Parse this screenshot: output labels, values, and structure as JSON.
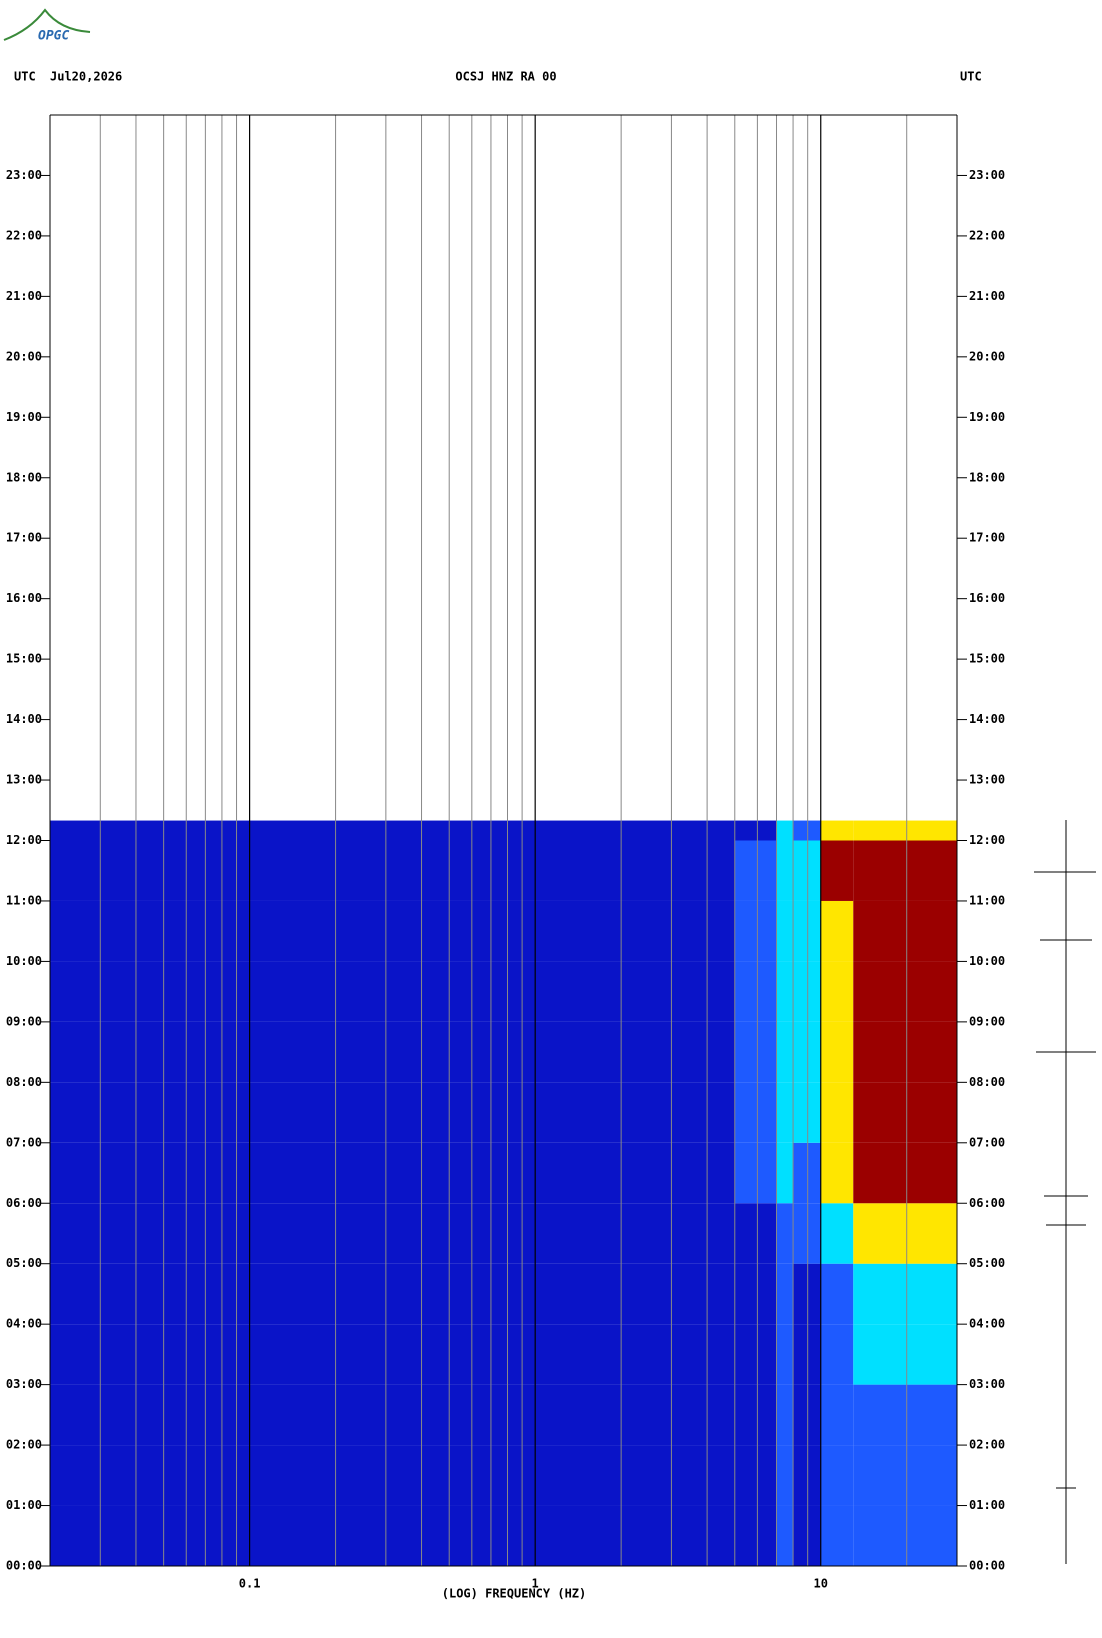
{
  "chart_data": {
    "type": "spectrogram",
    "logo": "OPGC",
    "left_header": "UTC",
    "date": "Jul20,2026",
    "title": "OCSJ HNZ RA 00",
    "right_header": "UTC",
    "xlabel": "(LOG) FREQUENCY (HZ)",
    "xscale": "log",
    "xlim": [
      0.02,
      30
    ],
    "xticks": [
      0.1,
      1,
      10
    ],
    "x_minor_grid": [
      0.03,
      0.04,
      0.05,
      0.06,
      0.07,
      0.08,
      0.09,
      0.2,
      0.3,
      0.4,
      0.5,
      0.6,
      0.7,
      0.8,
      0.9,
      2,
      3,
      4,
      5,
      6,
      7,
      8,
      9,
      20
    ],
    "ylim": [
      0,
      24
    ],
    "yticks": [
      {
        "value": 0,
        "label": "00:00"
      },
      {
        "value": 1,
        "label": "01:00"
      },
      {
        "value": 2,
        "label": "02:00"
      },
      {
        "value": 3,
        "label": "03:00"
      },
      {
        "value": 4,
        "label": "04:00"
      },
      {
        "value": 5,
        "label": "05:00"
      },
      {
        "value": 6,
        "label": "06:00"
      },
      {
        "value": 7,
        "label": "07:00"
      },
      {
        "value": 8,
        "label": "08:00"
      },
      {
        "value": 9,
        "label": "09:00"
      },
      {
        "value": 10,
        "label": "10:00"
      },
      {
        "value": 11,
        "label": "11:00"
      },
      {
        "value": 12,
        "label": "12:00"
      },
      {
        "value": 13,
        "label": "13:00"
      },
      {
        "value": 14,
        "label": "14:00"
      },
      {
        "value": 15,
        "label": "15:00"
      },
      {
        "value": 16,
        "label": "16:00"
      },
      {
        "value": 17,
        "label": "17:00"
      },
      {
        "value": 18,
        "label": "18:00"
      },
      {
        "value": 19,
        "label": "19:00"
      },
      {
        "value": 20,
        "label": "20:00"
      },
      {
        "value": 21,
        "label": "21:00"
      },
      {
        "value": 22,
        "label": "22:00"
      },
      {
        "value": 23,
        "label": "23:00"
      }
    ],
    "freq_edges": [
      0.02,
      5,
      7,
      8,
      10,
      13,
      30
    ],
    "time_edges": [
      0,
      1,
      2,
      3,
      4,
      5,
      6,
      7,
      8,
      9,
      10,
      11,
      12,
      12.33
    ],
    "colorscale": [
      "#0a14c8",
      "#1e5aff",
      "#00e0ff",
      "#ffe600",
      "#9b0000"
    ],
    "z": [
      [
        0,
        0,
        1,
        0,
        1,
        1
      ],
      [
        0,
        0,
        1,
        0,
        1,
        1
      ],
      [
        0,
        0,
        1,
        0,
        1,
        1
      ],
      [
        0,
        0,
        1,
        0,
        1,
        2
      ],
      [
        0,
        0,
        1,
        0,
        1,
        2
      ],
      [
        0,
        0,
        1,
        1,
        2,
        3
      ],
      [
        0,
        1,
        2,
        1,
        3,
        4
      ],
      [
        0,
        1,
        2,
        2,
        3,
        4
      ],
      [
        0,
        1,
        2,
        2,
        3,
        4
      ],
      [
        0,
        1,
        2,
        2,
        3,
        4
      ],
      [
        0,
        1,
        2,
        2,
        3,
        4
      ],
      [
        0,
        1,
        2,
        2,
        4,
        4
      ],
      [
        0,
        0,
        2,
        1,
        3,
        3
      ]
    ]
  }
}
